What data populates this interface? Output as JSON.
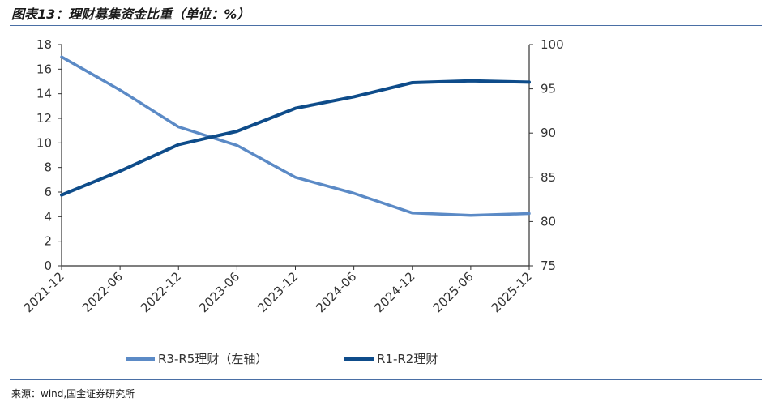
{
  "header": {
    "title": "图表13：理财募集资金比重（单位：%）"
  },
  "footer": {
    "source": "来源：wind,国金证券研究所"
  },
  "chart_data": {
    "type": "line",
    "title": "图表13：理财募集资金比重（单位：%）",
    "x": [
      "2021-12",
      "2022-06",
      "2022-12",
      "2023-06",
      "2023-12",
      "2024-06",
      "2024-12",
      "2025-06",
      "2025-12"
    ],
    "y_left": {
      "ylim": [
        0,
        18
      ],
      "ticks": [
        0,
        2,
        4,
        6,
        8,
        10,
        12,
        14,
        16,
        18
      ]
    },
    "y_right": {
      "ylim": [
        75,
        100
      ],
      "ticks": [
        75,
        80,
        85,
        90,
        95,
        100
      ]
    },
    "series": [
      {
        "name": "R3-R5理财（左轴）",
        "axis": "left",
        "color": "#5b8ac6",
        "values": [
          17.0,
          14.3,
          11.3,
          9.8,
          7.2,
          5.9,
          4.3,
          4.1,
          4.25
        ]
      },
      {
        "name": "R1-R2理财",
        "axis": "right",
        "color": "#0e4c8a",
        "values": [
          83.0,
          85.7,
          88.7,
          90.2,
          92.8,
          94.1,
          95.7,
          95.9,
          95.75
        ]
      }
    ],
    "grid": false,
    "legend_position": "bottom"
  }
}
